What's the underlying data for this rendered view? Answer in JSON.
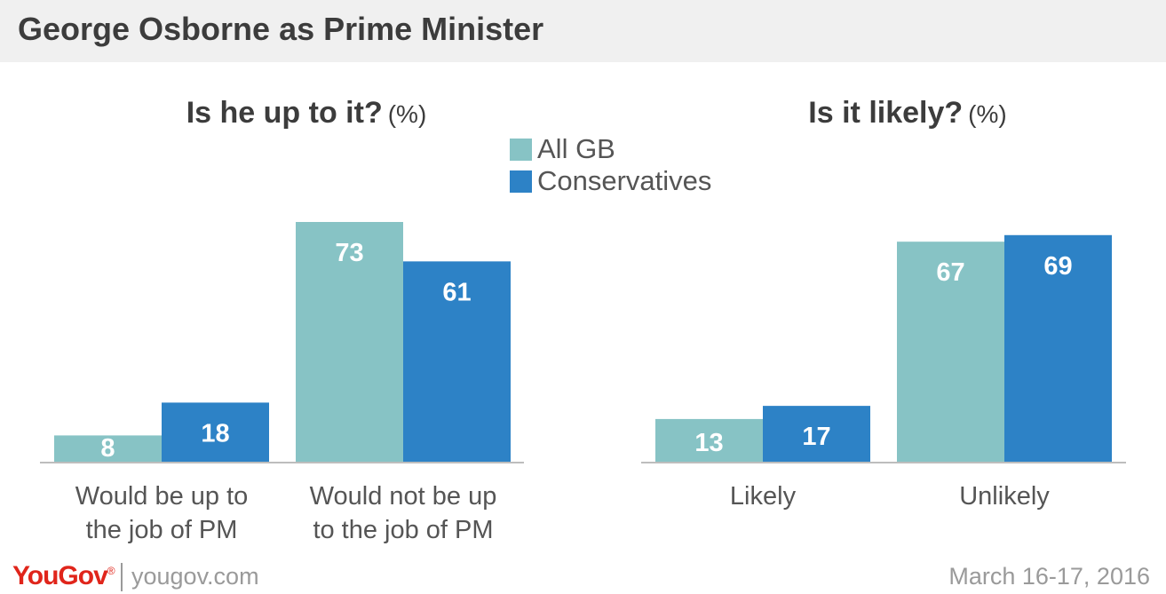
{
  "page_title": "George Osborne as Prime Minister",
  "legend": [
    {
      "label": "All GB",
      "color": "#87c3c5"
    },
    {
      "label": "Conservatives",
      "color": "#2d82c6"
    }
  ],
  "footer": {
    "logo": "YouGov",
    "logo_mark": "®",
    "site": "yougov.com",
    "date": "March 16-17, 2016"
  },
  "chart_data": [
    {
      "type": "bar",
      "title": "Is he up to it?",
      "unit": "(%)",
      "categories": [
        "Would be up to the job of PM",
        "Would not be up to the job of PM"
      ],
      "category_lines": [
        [
          "Would be up to",
          "the job of PM"
        ],
        [
          "Would not be up",
          "to the job of PM"
        ]
      ],
      "series": [
        {
          "name": "All GB",
          "values": [
            8,
            73
          ],
          "color": "#87c3c5"
        },
        {
          "name": "Conservatives",
          "values": [
            18,
            61
          ],
          "color": "#2d82c6"
        }
      ],
      "ylim": [
        0,
        73
      ],
      "grid": false
    },
    {
      "type": "bar",
      "title": "Is it likely?",
      "unit": "(%)",
      "categories": [
        "Likely",
        "Unlikely"
      ],
      "category_lines": [
        [
          "Likely"
        ],
        [
          "Unlikely"
        ]
      ],
      "series": [
        {
          "name": "All GB",
          "values": [
            13,
            67
          ],
          "color": "#87c3c5"
        },
        {
          "name": "Conservatives",
          "values": [
            17,
            69
          ],
          "color": "#2d82c6"
        }
      ],
      "ylim": [
        0,
        73
      ],
      "grid": false
    }
  ]
}
